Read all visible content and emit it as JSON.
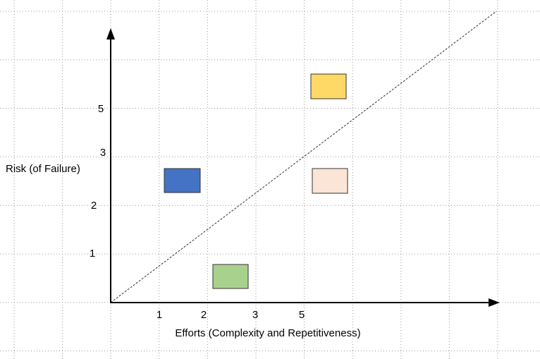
{
  "axes": {
    "y_label": "Risk (of Failure)",
    "x_label": "Efforts (Complexity and Repetitiveness)",
    "x_tick_labels": [
      "1",
      "2",
      "3",
      "5"
    ],
    "y_tick_labels": [
      "5",
      "3",
      "2",
      "1"
    ]
  }
}
